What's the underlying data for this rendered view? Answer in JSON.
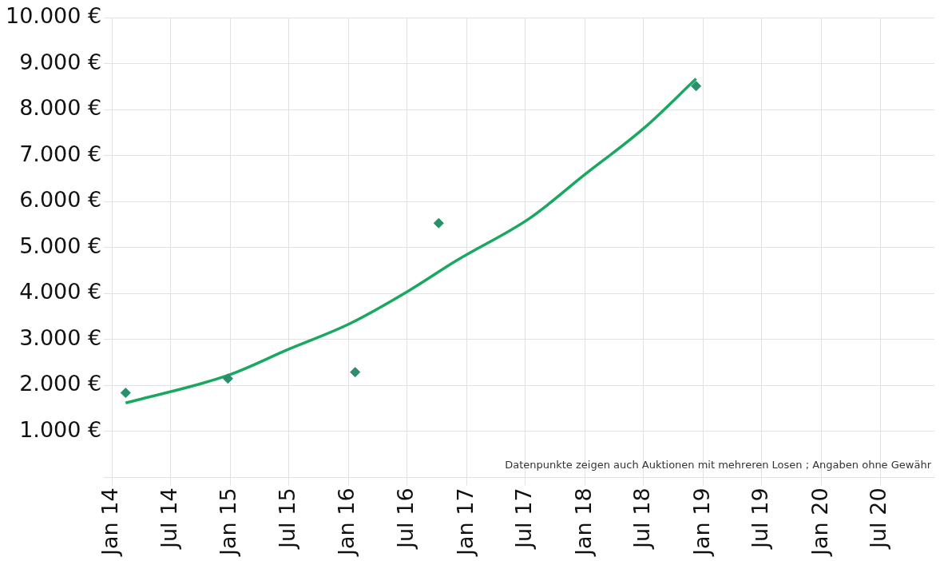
{
  "chart_data": {
    "type": "scatter",
    "marker": "diamond",
    "grid": true,
    "legend": false,
    "xlim": [
      "2014-01-01",
      "2020-12-15"
    ],
    "xticks": [
      {
        "value": "2014-01-01",
        "label": "Jan 14"
      },
      {
        "value": "2014-07-01",
        "label": "Jul 14"
      },
      {
        "value": "2015-01-01",
        "label": "Jan 15"
      },
      {
        "value": "2015-07-01",
        "label": "Jul 15"
      },
      {
        "value": "2016-01-01",
        "label": "Jan 16"
      },
      {
        "value": "2016-07-01",
        "label": "Jul 16"
      },
      {
        "value": "2017-01-01",
        "label": "Jan 17"
      },
      {
        "value": "2017-07-01",
        "label": "Jul 17"
      },
      {
        "value": "2018-01-01",
        "label": "Jan 18"
      },
      {
        "value": "2018-07-01",
        "label": "Jul 18"
      },
      {
        "value": "2019-01-01",
        "label": "Jan 19"
      },
      {
        "value": "2019-07-01",
        "label": "Jul 19"
      },
      {
        "value": "2020-01-01",
        "label": "Jan 20"
      },
      {
        "value": "2020-07-01",
        "label": "Jul 20"
      }
    ],
    "ylim": [
      0,
      10000
    ],
    "yticks": [
      {
        "value": 0,
        "label": null
      },
      {
        "value": 1000,
        "label": "1.000 €"
      },
      {
        "value": 2000,
        "label": "2.000 €"
      },
      {
        "value": 3000,
        "label": "3.000 €"
      },
      {
        "value": 4000,
        "label": "4.000 €"
      },
      {
        "value": 5000,
        "label": "5.000 €"
      },
      {
        "value": 6000,
        "label": "6.000 €"
      },
      {
        "value": 7000,
        "label": "7.000 €"
      },
      {
        "value": 8000,
        "label": "8.000 €"
      },
      {
        "value": 9000,
        "label": "9.000 €"
      },
      {
        "value": 10000,
        "label": "10.000 €"
      }
    ],
    "x": [
      "2014-02-12",
      "2014-12-25",
      "2016-01-22",
      "2016-10-06",
      "2018-12-10"
    ],
    "series": [
      {
        "color": "#2a8f6a",
        "values": [
          1840,
          2150,
          2290,
          5530,
          8510
        ]
      },
      {
        "type": "line",
        "marker": "none",
        "color": "#1aa860",
        "x": [
          "2014-02-12",
          "2014-12-25",
          "2015-07-01",
          "2016-01-04",
          "2016-07-01",
          "2016-12-01",
          "2017-07-15",
          "2018-01-01",
          "2018-07-01",
          "2018-12-10"
        ],
        "values": [
          1620,
          2220,
          2790,
          3340,
          4040,
          4720,
          5640,
          6590,
          7590,
          8670
        ]
      }
    ],
    "annotations": [
      "Datenpunkte zeigen auch Auktionen mit mehreren Losen ; Angaben ohne Gewähr"
    ]
  }
}
